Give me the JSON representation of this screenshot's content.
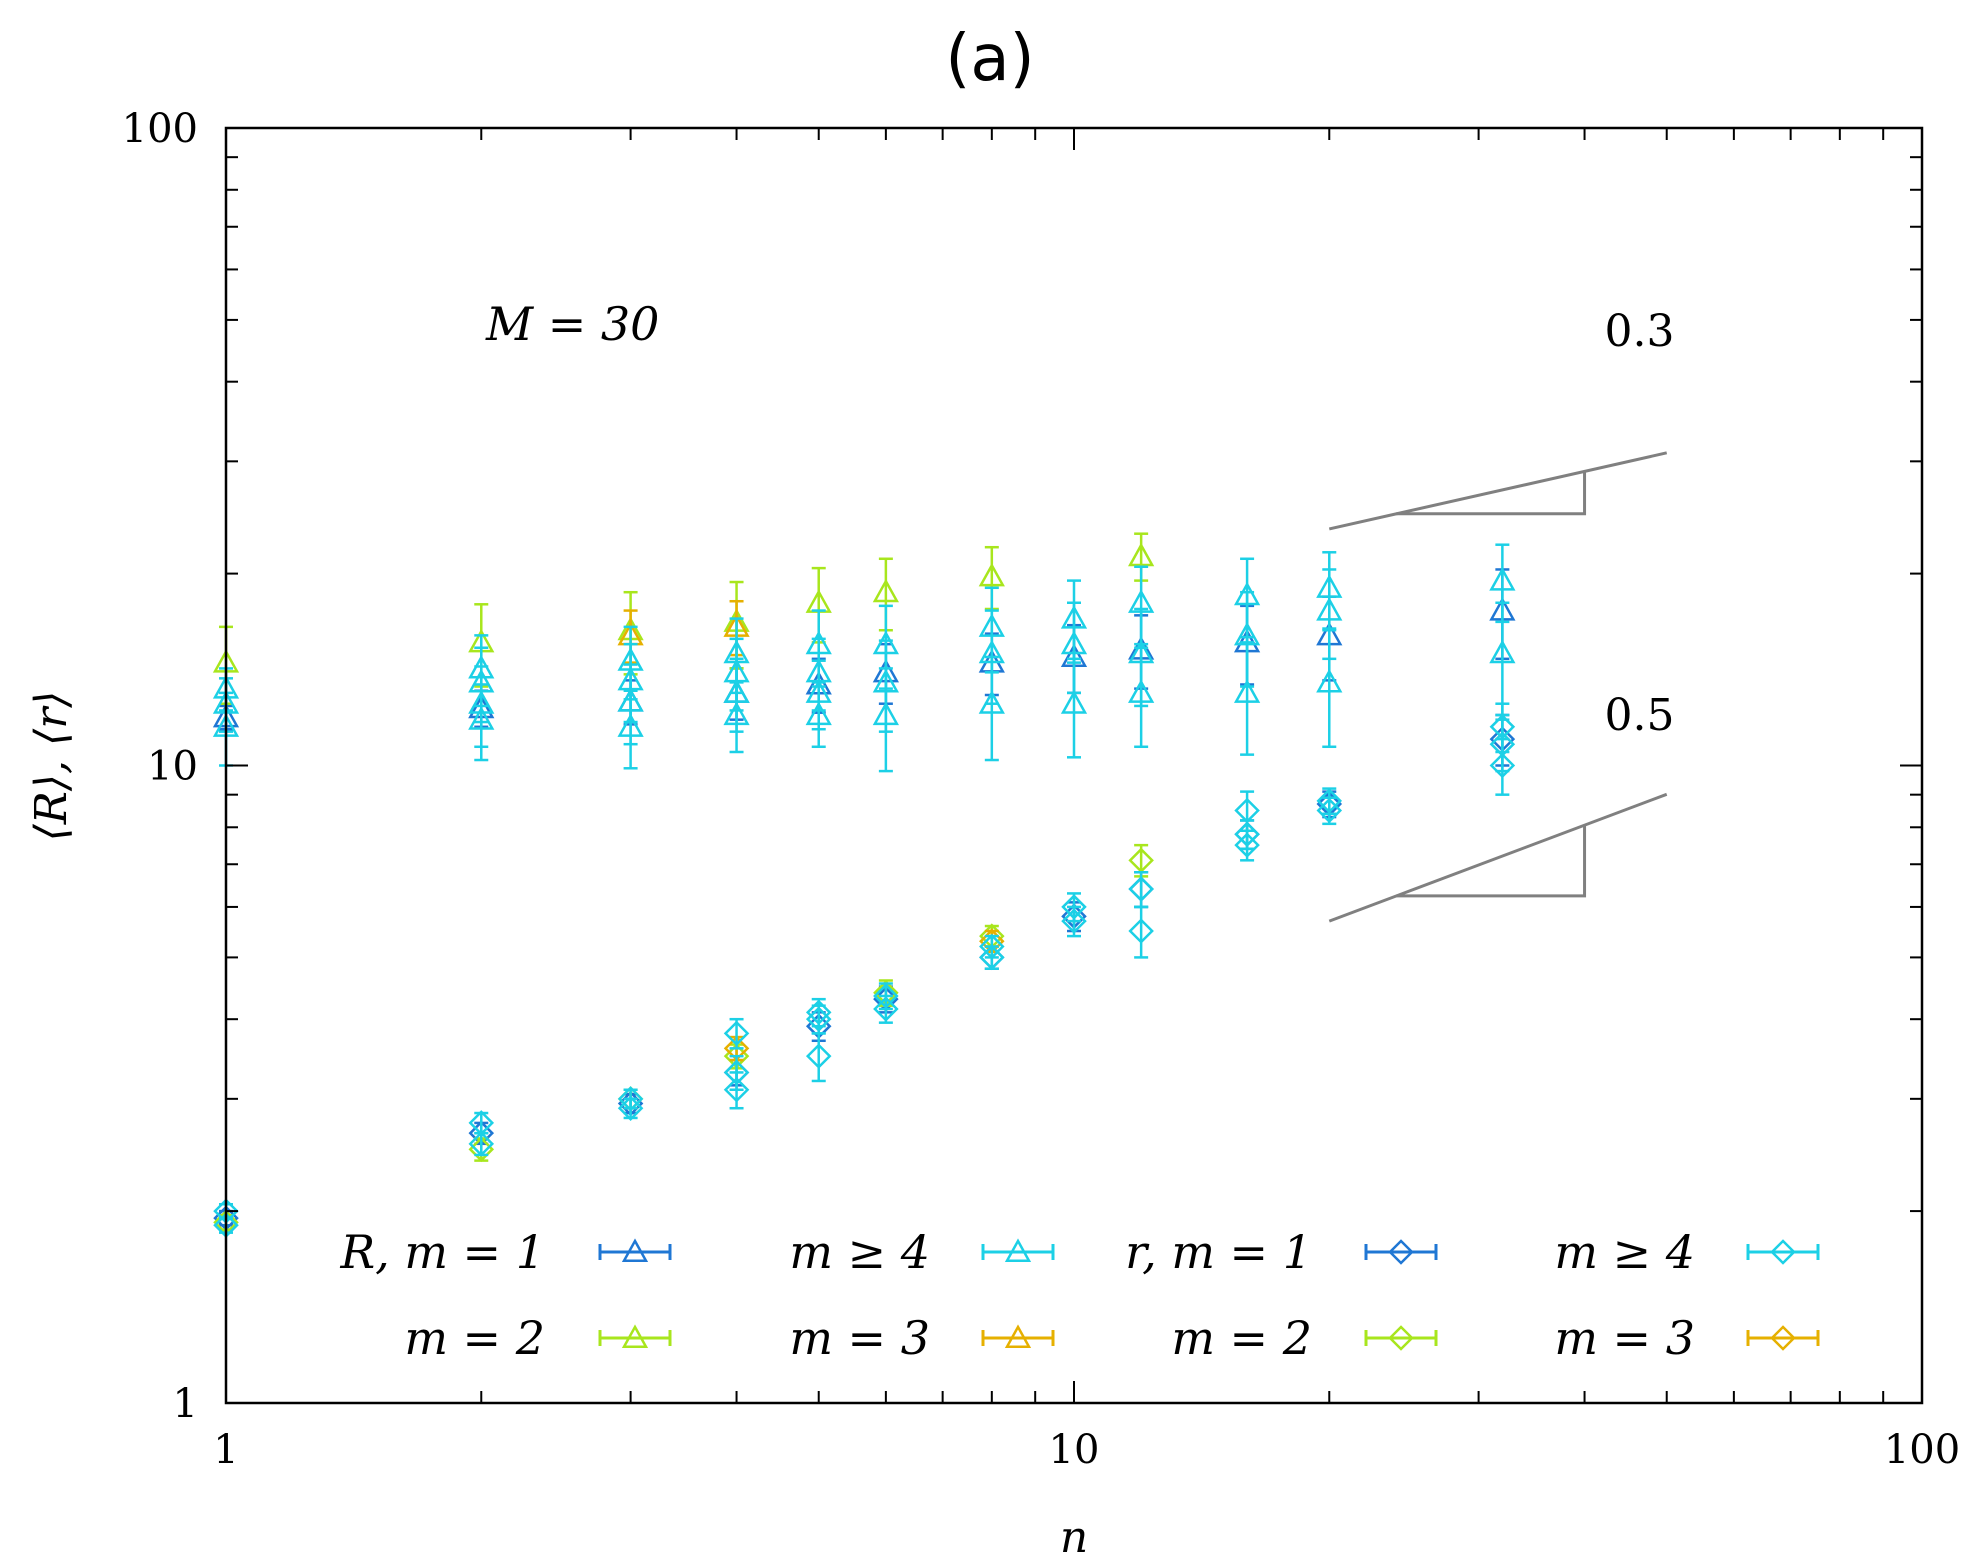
{
  "chart_data": {
    "type": "scatter",
    "title": "(a)",
    "xlabel": "n",
    "ylabel": "⟨R⟩, ⟨r⟩",
    "xscale": "log",
    "yscale": "log",
    "xlim": [
      1,
      100
    ],
    "ylim": [
      1,
      100
    ],
    "x_tick_labels": [
      "1",
      "10",
      "100"
    ],
    "y_tick_labels": [
      "1",
      "10",
      "100"
    ],
    "annotation": "M = 30",
    "slope_guides": [
      {
        "label": "0.3",
        "slope": 0.3
      },
      {
        "label": "0.5",
        "slope": 0.5
      }
    ],
    "legend_position": "bottom",
    "colors": {
      "m1": "#1f77d4",
      "m2": "#a8e61d",
      "m3": "#e6b000",
      "m4": "#1cd0e6",
      "frame": "#000000",
      "guide": "#808080"
    },
    "series": [
      {
        "name": "R, m = 1",
        "label": "R, m = 1",
        "marker": "triangle",
        "color": "#1f77d4",
        "points": [
          [
            1,
            11.9,
            0.5
          ],
          [
            2,
            12.3,
            0.8
          ],
          [
            3,
            12.6,
            1.0
          ],
          [
            4,
            13.0,
            1.2
          ],
          [
            5,
            13.4,
            1.3
          ],
          [
            6,
            14.0,
            1.5
          ],
          [
            8,
            14.5,
            1.6
          ],
          [
            10,
            14.8,
            1.8
          ],
          [
            12,
            15.2,
            2.0
          ],
          [
            16,
            15.6,
            2.2
          ],
          [
            20,
            16.0,
            2.4
          ],
          [
            32,
            17.5,
            2.8
          ]
        ]
      },
      {
        "name": "m = 2",
        "label": "m = 2",
        "marker": "triangle",
        "color": "#a8e61d",
        "points": [
          [
            1,
            14.5,
            2.0
          ],
          [
            2,
            15.6,
            2.3
          ],
          [
            3,
            16.3,
            2.4
          ],
          [
            4,
            16.8,
            2.6
          ],
          [
            5,
            18.0,
            2.4
          ],
          [
            6,
            18.7,
            2.4
          ],
          [
            8,
            19.8,
            2.2
          ],
          [
            12,
            21.3,
            1.8
          ]
        ]
      },
      {
        "name": "m = 3",
        "label": "m = 3",
        "marker": "triangle",
        "color": "#e6b000",
        "points": [
          [
            3,
            16.0,
            1.5
          ],
          [
            4,
            16.5,
            1.6
          ]
        ]
      },
      {
        "name": "m ≥ 4",
        "label": "m ≥ 4",
        "marker": "triangle",
        "color": "#1cd0e6",
        "points": [
          [
            1,
            11.5,
            1.5
          ],
          [
            1,
            12.5,
            1.2
          ],
          [
            1,
            13.2,
            1.0
          ],
          [
            2,
            11.8,
            1.6
          ],
          [
            2,
            12.5,
            1.8
          ],
          [
            2,
            13.5,
            1.8
          ],
          [
            2,
            14.2,
            1.8
          ],
          [
            3,
            11.5,
            1.6
          ],
          [
            3,
            12.6,
            1.8
          ],
          [
            3,
            13.6,
            1.9
          ],
          [
            3,
            14.6,
            1.9
          ],
          [
            4,
            12.0,
            1.5
          ],
          [
            4,
            13.0,
            1.7
          ],
          [
            4,
            14.0,
            1.8
          ],
          [
            4,
            15.0,
            2.0
          ],
          [
            5,
            12.0,
            1.3
          ],
          [
            5,
            13.0,
            1.6
          ],
          [
            5,
            14.0,
            1.8
          ],
          [
            5,
            15.5,
            2.0
          ],
          [
            6,
            12.0,
            2.2
          ],
          [
            6,
            13.5,
            2.2
          ],
          [
            6,
            15.5,
            2.3
          ],
          [
            8,
            12.5,
            2.3
          ],
          [
            8,
            15.0,
            2.5
          ],
          [
            8,
            16.5,
            2.5
          ],
          [
            10,
            12.5,
            2.2
          ],
          [
            10,
            15.5,
            2.5
          ],
          [
            10,
            17.0,
            2.5
          ],
          [
            12,
            13.0,
            2.3
          ],
          [
            12,
            15.0,
            2.6
          ],
          [
            12,
            18.0,
            2.5
          ],
          [
            16,
            13.0,
            2.6
          ],
          [
            16,
            16.0,
            2.7
          ],
          [
            16,
            18.5,
            2.6
          ],
          [
            20,
            13.5,
            2.8
          ],
          [
            20,
            17.5,
            2.8
          ],
          [
            20,
            19.0,
            2.6
          ],
          [
            32,
            15.0,
            3.0
          ],
          [
            32,
            19.5,
            2.7
          ]
        ]
      },
      {
        "name": "r, m = 1",
        "label": "r, m = 1",
        "marker": "diamond",
        "color": "#1f77d4",
        "points": [
          [
            1,
            1.95,
            0.05
          ],
          [
            2,
            2.65,
            0.1
          ],
          [
            3,
            2.95,
            0.1
          ],
          [
            4,
            3.3,
            0.15
          ],
          [
            5,
            3.9,
            0.2
          ],
          [
            6,
            4.3,
            0.2
          ],
          [
            8,
            5.0,
            0.2
          ],
          [
            10,
            5.8,
            0.3
          ],
          [
            12,
            6.4,
            0.4
          ],
          [
            16,
            7.8,
            0.4
          ],
          [
            20,
            8.7,
            0.4
          ],
          [
            32,
            11.0,
            1.0
          ]
        ]
      },
      {
        "name": "m = 2",
        "label": "m = 2",
        "marker": "diamond",
        "color": "#a8e61d",
        "points": [
          [
            1,
            1.92,
            0.05
          ],
          [
            2,
            2.5,
            0.1
          ],
          [
            3,
            3.0,
            0.1
          ],
          [
            4,
            3.5,
            0.15
          ],
          [
            6,
            4.4,
            0.2
          ],
          [
            8,
            5.4,
            0.2
          ],
          [
            12,
            7.1,
            0.4
          ]
        ]
      },
      {
        "name": "m = 3",
        "label": "m = 3",
        "marker": "diamond",
        "color": "#e6b000",
        "points": [
          [
            4,
            3.6,
            0.15
          ],
          [
            8,
            5.3,
            0.2
          ]
        ]
      },
      {
        "name": "m ≥ 4",
        "label": "m ≥ 4",
        "marker": "diamond",
        "color": "#1cd0e6",
        "points": [
          [
            1,
            1.9,
            0.05
          ],
          [
            1,
            2.0,
            0.05
          ],
          [
            2,
            2.55,
            0.1
          ],
          [
            2,
            2.75,
            0.1
          ],
          [
            3,
            2.9,
            0.1
          ],
          [
            3,
            3.0,
            0.1
          ],
          [
            4,
            3.1,
            0.2
          ],
          [
            4,
            3.3,
            0.2
          ],
          [
            4,
            3.8,
            0.2
          ],
          [
            5,
            3.5,
            0.3
          ],
          [
            5,
            4.0,
            0.2
          ],
          [
            5,
            4.1,
            0.2
          ],
          [
            6,
            4.15,
            0.2
          ],
          [
            6,
            4.35,
            0.2
          ],
          [
            8,
            5.0,
            0.2
          ],
          [
            8,
            5.2,
            0.2
          ],
          [
            10,
            5.7,
            0.3
          ],
          [
            10,
            6.0,
            0.3
          ],
          [
            12,
            5.5,
            0.5
          ],
          [
            12,
            6.4,
            0.4
          ],
          [
            16,
            7.5,
            0.4
          ],
          [
            16,
            7.8,
            0.4
          ],
          [
            16,
            8.5,
            0.6
          ],
          [
            20,
            8.5,
            0.4
          ],
          [
            20,
            8.8,
            0.4
          ],
          [
            32,
            10.0,
            1.0
          ],
          [
            32,
            10.8,
            1.0
          ],
          [
            32,
            11.5,
            1.0
          ]
        ]
      }
    ]
  }
}
